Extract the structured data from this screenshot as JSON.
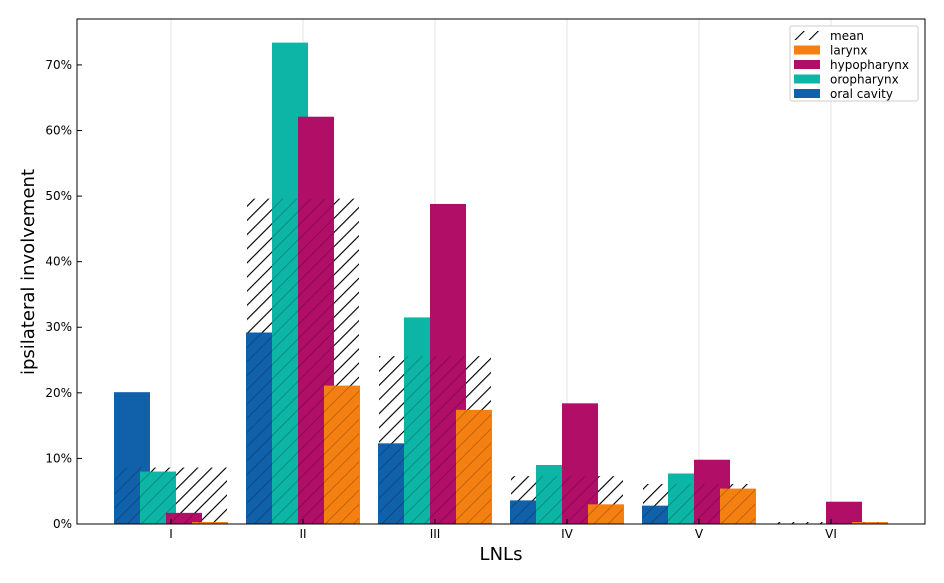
{
  "chart_data": {
    "type": "bar",
    "title": "",
    "xlabel": "LNLs",
    "ylabel": "ipsilateral involvement",
    "categories": [
      "I",
      "II",
      "III",
      "IV",
      "V",
      "VI"
    ],
    "ylim": [
      0,
      77
    ],
    "yticks": [
      0,
      10,
      20,
      30,
      40,
      50,
      60,
      70
    ],
    "ytick_labels": [
      "0%",
      "10%",
      "20%",
      "30%",
      "40%",
      "50%",
      "60%",
      "70%"
    ],
    "grid": "vertical",
    "legend_position": "top-right",
    "mean": {
      "name": "mean",
      "pattern": "hatched",
      "values": [
        8.6,
        49.6,
        25.6,
        7.3,
        6.1,
        0.3
      ]
    },
    "series": [
      {
        "name": "oral cavity",
        "color": "#1060aa",
        "values": [
          20.1,
          29.2,
          12.3,
          3.6,
          2.8,
          0.0
        ]
      },
      {
        "name": "oropharynx",
        "color": "#0db5a6",
        "values": [
          8.0,
          73.4,
          31.5,
          9.0,
          7.7,
          0.0
        ]
      },
      {
        "name": "hypopharynx",
        "color": "#b10e67",
        "values": [
          1.7,
          62.1,
          48.8,
          18.4,
          9.8,
          3.4
        ]
      },
      {
        "name": "larynx",
        "color": "#f58012",
        "values": [
          0.3,
          21.1,
          17.4,
          3.0,
          5.4,
          0.3
        ]
      }
    ],
    "legend_order": [
      "mean",
      "larynx",
      "hypopharynx",
      "oropharynx",
      "oral cavity"
    ]
  }
}
